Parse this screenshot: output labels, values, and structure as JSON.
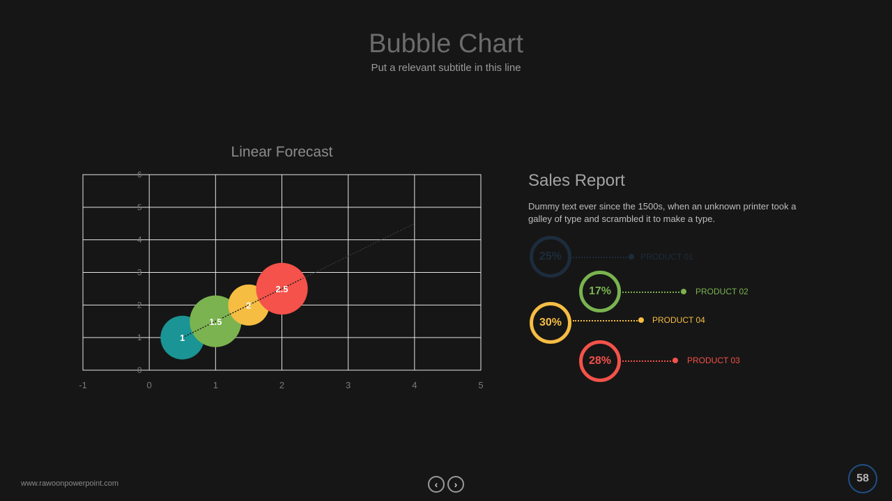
{
  "header": {
    "title": "Bubble Chart",
    "subtitle": "Put a relevant subtitle in this line"
  },
  "chart_data": {
    "type": "scatter",
    "title": "Linear Forecast",
    "xlabel": "",
    "ylabel": "",
    "xlim": [
      -1,
      5
    ],
    "ylim": [
      0,
      6
    ],
    "x_ticks": [
      "-1",
      "0",
      "1",
      "2",
      "3",
      "4",
      "5"
    ],
    "y_ticks": [
      "0",
      "1",
      "2",
      "3",
      "4",
      "5",
      "6"
    ],
    "grid": true,
    "legend": "none",
    "bubbles": [
      {
        "x": 0.5,
        "y": 1,
        "size": 0.66,
        "label": "1",
        "color": "#1a9494"
      },
      {
        "x": 1.0,
        "y": 1.5,
        "size": 0.78,
        "label": "1.5",
        "color": "#7ab34f"
      },
      {
        "x": 1.5,
        "y": 2,
        "size": 0.62,
        "label": "2",
        "color": "#f6bd43"
      },
      {
        "x": 2.0,
        "y": 2.5,
        "size": 0.78,
        "label": "2.5",
        "color": "#f4524a"
      }
    ],
    "trendline": {
      "x": [
        0.5,
        4.0
      ],
      "y": [
        1.0,
        4.5
      ],
      "style": "dotted"
    }
  },
  "sales": {
    "title": "Sales Report",
    "text": "Dummy text ever since the 1500s,  when an unknown printer took a galley of type and scrambled it to make a type.",
    "products": [
      {
        "percent": "25%",
        "label": "PRODUCT 01",
        "color": "#1d2c3d"
      },
      {
        "percent": "17%",
        "label": "PRODUCT 02",
        "color": "#7ab34f"
      },
      {
        "percent": "30%",
        "label": "PRODUCT 04",
        "color": "#f6bd43"
      },
      {
        "percent": "28%",
        "label": "PRODUCT 03",
        "color": "#f4524a"
      }
    ]
  },
  "footer": {
    "url": "www.rawoonpowerpoint.com",
    "prev_icon": "chevron-left-icon",
    "next_icon": "chevron-right-icon",
    "prev_glyph": "‹",
    "next_glyph": "›",
    "page_number": "58"
  }
}
